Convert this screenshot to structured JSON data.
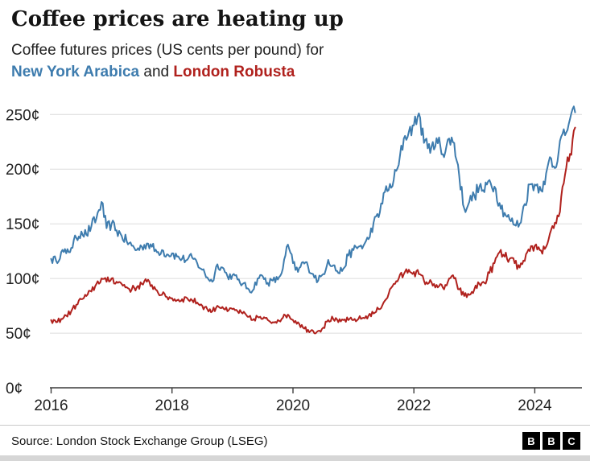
{
  "header": {
    "title": "Coffee prices are heating up",
    "subtitle_prefix": "Coffee futures prices (US cents per pound) for",
    "series1_label": "New York Arabica",
    "conjunction": " and ",
    "series2_label": "London Robusta"
  },
  "footer": {
    "source": "Source: London Stock Exchange Group (LSEG)",
    "logo_letters": [
      "B",
      "B",
      "C"
    ]
  },
  "colors": {
    "arabica": "#3e7cae",
    "robusta": "#b0211d",
    "grid": "#dcdcdc",
    "axis": "#3c3c3c",
    "text": "#222222"
  },
  "chart_data": {
    "type": "line",
    "title": "Coffee prices are heating up",
    "subtitle": "Coffee futures prices (US cents per pound) for New York Arabica and London Robusta",
    "xlabel": "",
    "ylabel": "US cents per pound",
    "xlim": [
      2015.98,
      2024.78
    ],
    "ylim": [
      0,
      262
    ],
    "y_ticks": [
      0,
      50,
      100,
      150,
      200,
      250
    ],
    "y_tick_labels": [
      "0¢",
      "50¢",
      "100¢",
      "150¢",
      "200¢",
      "250¢"
    ],
    "x_ticks": [
      2016,
      2018,
      2020,
      2022,
      2024
    ],
    "grid": "horizontal",
    "legend_position": "in-subtitle",
    "x_start": 2016.0,
    "x_step": 0.0833333,
    "series": [
      {
        "name": "New York Arabica",
        "color": "#3e7cae",
        "values": [
          118,
          116,
          124,
          123,
          128,
          137,
          143,
          140,
          148,
          155,
          170,
          146,
          150,
          144,
          139,
          134,
          130,
          126,
          129,
          132,
          129,
          124,
          126,
          122,
          123,
          120,
          118,
          117,
          119,
          114,
          108,
          101,
          97,
          113,
          110,
          102,
          103,
          99,
          95,
          91,
          89,
          100,
          102,
          96,
          98,
          99,
          109,
          131,
          114,
          106,
          115,
          111,
          104,
          98,
          104,
          117,
          112,
          105,
          109,
          121,
          126,
          129,
          130,
          136,
          151,
          156,
          178,
          181,
          190,
          204,
          228,
          234,
          240,
          251,
          224,
          223,
          218,
          229,
          211,
          228,
          224,
          194,
          164,
          170,
          176,
          184,
          179,
          190,
          184,
          169,
          160,
          154,
          149,
          150,
          168,
          186,
          186,
          184,
          186,
          211,
          201,
          226,
          231,
          246,
          252
        ]
      },
      {
        "name": "London Robusta",
        "color": "#b0211d",
        "values": [
          62,
          60,
          63,
          66,
          70,
          76,
          81,
          84,
          88,
          95,
          100,
          97,
          100,
          97,
          95,
          92,
          90,
          92,
          95,
          97,
          94,
          89,
          85,
          83,
          82,
          80,
          81,
          82,
          80,
          78,
          75,
          72,
          70,
          75,
          74,
          70,
          72,
          70,
          68,
          65,
          62,
          65,
          63,
          62,
          60,
          62,
          64,
          67,
          62,
          60,
          55,
          53,
          52,
          52,
          55,
          62,
          63,
          60,
          62,
          62,
          62,
          63,
          64,
          66,
          68,
          72,
          78,
          86,
          95,
          100,
          104,
          108,
          106,
          104,
          98,
          96,
          95,
          93,
          90,
          100,
          100,
          90,
          84,
          85,
          90,
          95,
          96,
          105,
          114,
          124,
          120,
          118,
          114,
          110,
          116,
          125,
          130,
          126,
          127,
          141,
          151,
          161,
          195,
          214,
          238
        ]
      }
    ]
  }
}
